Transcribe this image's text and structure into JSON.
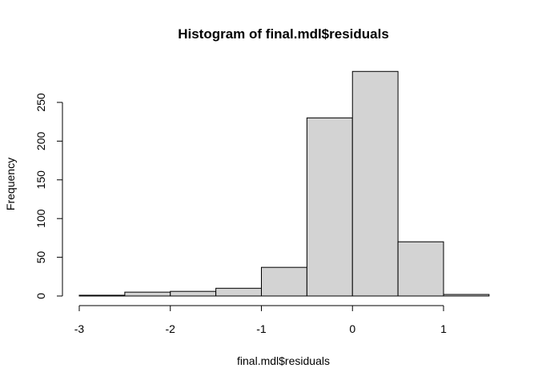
{
  "chart_data": {
    "type": "bar",
    "title": "Histogram of final.mdl$residuals",
    "xlabel": "final.mdl$residuals",
    "ylabel": "Frequency",
    "bins": [
      {
        "from": -3.0,
        "to": -2.5,
        "count": 1
      },
      {
        "from": -2.5,
        "to": -2.0,
        "count": 5
      },
      {
        "from": -2.0,
        "to": -1.5,
        "count": 6
      },
      {
        "from": -1.5,
        "to": -1.0,
        "count": 10
      },
      {
        "from": -1.0,
        "to": -0.5,
        "count": 37
      },
      {
        "from": -0.5,
        "to": 0.0,
        "count": 230
      },
      {
        "from": 0.0,
        "to": 0.5,
        "count": 290
      },
      {
        "from": 0.5,
        "to": 1.0,
        "count": 70
      },
      {
        "from": 1.0,
        "to": 1.5,
        "count": 2
      }
    ],
    "xlim": [
      -3,
      1.5
    ],
    "ylim": [
      0,
      290
    ],
    "xticks": [
      -3,
      -2,
      -1,
      0,
      1
    ],
    "xtick_labels": [
      "-3",
      "-2",
      "-1",
      "0",
      "1"
    ],
    "yticks": [
      0,
      50,
      100,
      150,
      200,
      250
    ],
    "ytick_labels": [
      "0",
      "50",
      "100",
      "150",
      "200",
      "250"
    ],
    "grid": false,
    "legend": "none",
    "bar_color": "#d3d3d3"
  }
}
